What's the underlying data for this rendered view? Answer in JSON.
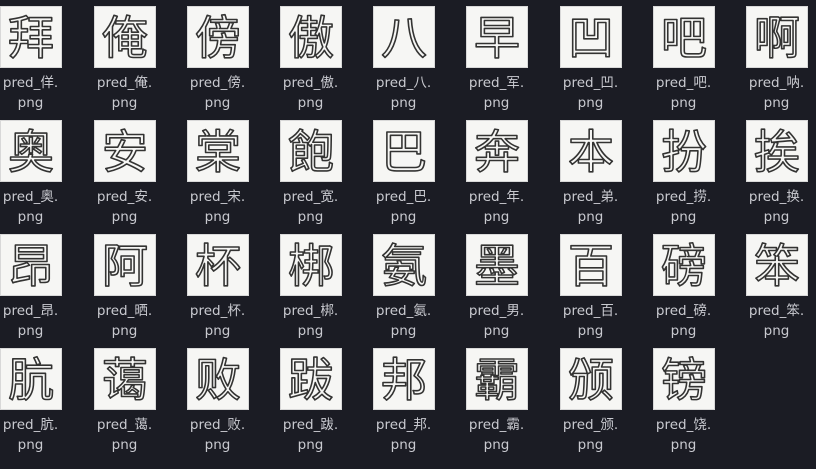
{
  "files": [
    {
      "name": "pred_佯.",
      "ext": "png",
      "glyph": "拜"
    },
    {
      "name": "pred_俺.",
      "ext": "png",
      "glyph": "俺"
    },
    {
      "name": "pred_傍.",
      "ext": "png",
      "glyph": "傍"
    },
    {
      "name": "pred_傲.",
      "ext": "png",
      "glyph": "傲"
    },
    {
      "name": "pred_八.",
      "ext": "png",
      "glyph": "八"
    },
    {
      "name": "pred_军.",
      "ext": "png",
      "glyph": "早"
    },
    {
      "name": "pred_凹.",
      "ext": "png",
      "glyph": "凹"
    },
    {
      "name": "pred_吧.",
      "ext": "png",
      "glyph": "吧"
    },
    {
      "name": "pred_呐.",
      "ext": "png",
      "glyph": "啊"
    },
    {
      "name": "pred_奥.",
      "ext": "png",
      "glyph": "奥"
    },
    {
      "name": "pred_安.",
      "ext": "png",
      "glyph": "安"
    },
    {
      "name": "pred_宋.",
      "ext": "png",
      "glyph": "棠"
    },
    {
      "name": "pred_宽.",
      "ext": "png",
      "glyph": "飽"
    },
    {
      "name": "pred_巴.",
      "ext": "png",
      "glyph": "巴"
    },
    {
      "name": "pred_年.",
      "ext": "png",
      "glyph": "奔"
    },
    {
      "name": "pred_弟.",
      "ext": "png",
      "glyph": "本"
    },
    {
      "name": "pred_捞.",
      "ext": "png",
      "glyph": "扮"
    },
    {
      "name": "pred_换.",
      "ext": "png",
      "glyph": "挨"
    },
    {
      "name": "pred_昂.",
      "ext": "png",
      "glyph": "昂"
    },
    {
      "name": "pred_晒.",
      "ext": "png",
      "glyph": "阿"
    },
    {
      "name": "pred_杯.",
      "ext": "png",
      "glyph": "杯"
    },
    {
      "name": "pred_梆.",
      "ext": "png",
      "glyph": "梆"
    },
    {
      "name": "pred_氨.",
      "ext": "png",
      "glyph": "氨"
    },
    {
      "name": "pred_男.",
      "ext": "png",
      "glyph": "墨"
    },
    {
      "name": "pred_百.",
      "ext": "png",
      "glyph": "百"
    },
    {
      "name": "pred_磅.",
      "ext": "png",
      "glyph": "磅"
    },
    {
      "name": "pred_笨.",
      "ext": "png",
      "glyph": "笨"
    },
    {
      "name": "pred_肮.",
      "ext": "png",
      "glyph": "肮"
    },
    {
      "name": "pred_蔼.",
      "ext": "png",
      "glyph": "蔼"
    },
    {
      "name": "pred_败.",
      "ext": "png",
      "glyph": "败"
    },
    {
      "name": "pred_跋.",
      "ext": "png",
      "glyph": "跋"
    },
    {
      "name": "pred_邦.",
      "ext": "png",
      "glyph": "邦"
    },
    {
      "name": "pred_霸.",
      "ext": "png",
      "glyph": "霸"
    },
    {
      "name": "pred_颁.",
      "ext": "png",
      "glyph": "颁"
    },
    {
      "name": "pred_饶.",
      "ext": "png",
      "glyph": "镑"
    }
  ]
}
